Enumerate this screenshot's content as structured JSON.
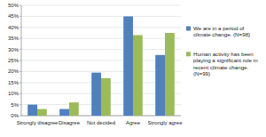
{
  "chart_data": {
    "type": "bar",
    "categories": [
      "Strongly disagree",
      "Disagree",
      "Not decided",
      "Agree",
      "Strongly agree"
    ],
    "series": [
      {
        "name": "We are in a period of climate change. (N=98)",
        "color": "#4f81bd",
        "values": [
          5,
          3,
          19.5,
          45,
          27.5
        ]
      },
      {
        "name": "Human activity has been playing a significant role in recent climate change. (N=99)",
        "color": "#9bbb59",
        "values": [
          3,
          6,
          17,
          36.5,
          37.5
        ]
      }
    ],
    "ylim": [
      0,
      50
    ],
    "yticks": [
      {
        "value": 0,
        "label": "0%"
      },
      {
        "value": 5,
        "label": "5%"
      },
      {
        "value": 10,
        "label": "10%"
      },
      {
        "value": 15,
        "label": "15%"
      },
      {
        "value": 20,
        "label": "20%"
      },
      {
        "value": 25,
        "label": "25%"
      },
      {
        "value": 30,
        "label": "30%"
      },
      {
        "value": 35,
        "label": "35%"
      },
      {
        "value": 40,
        "label": "40%"
      },
      {
        "value": 45,
        "label": "45%"
      },
      {
        "value": 50,
        "label": "50%"
      }
    ],
    "grid": true,
    "legend": "right"
  }
}
